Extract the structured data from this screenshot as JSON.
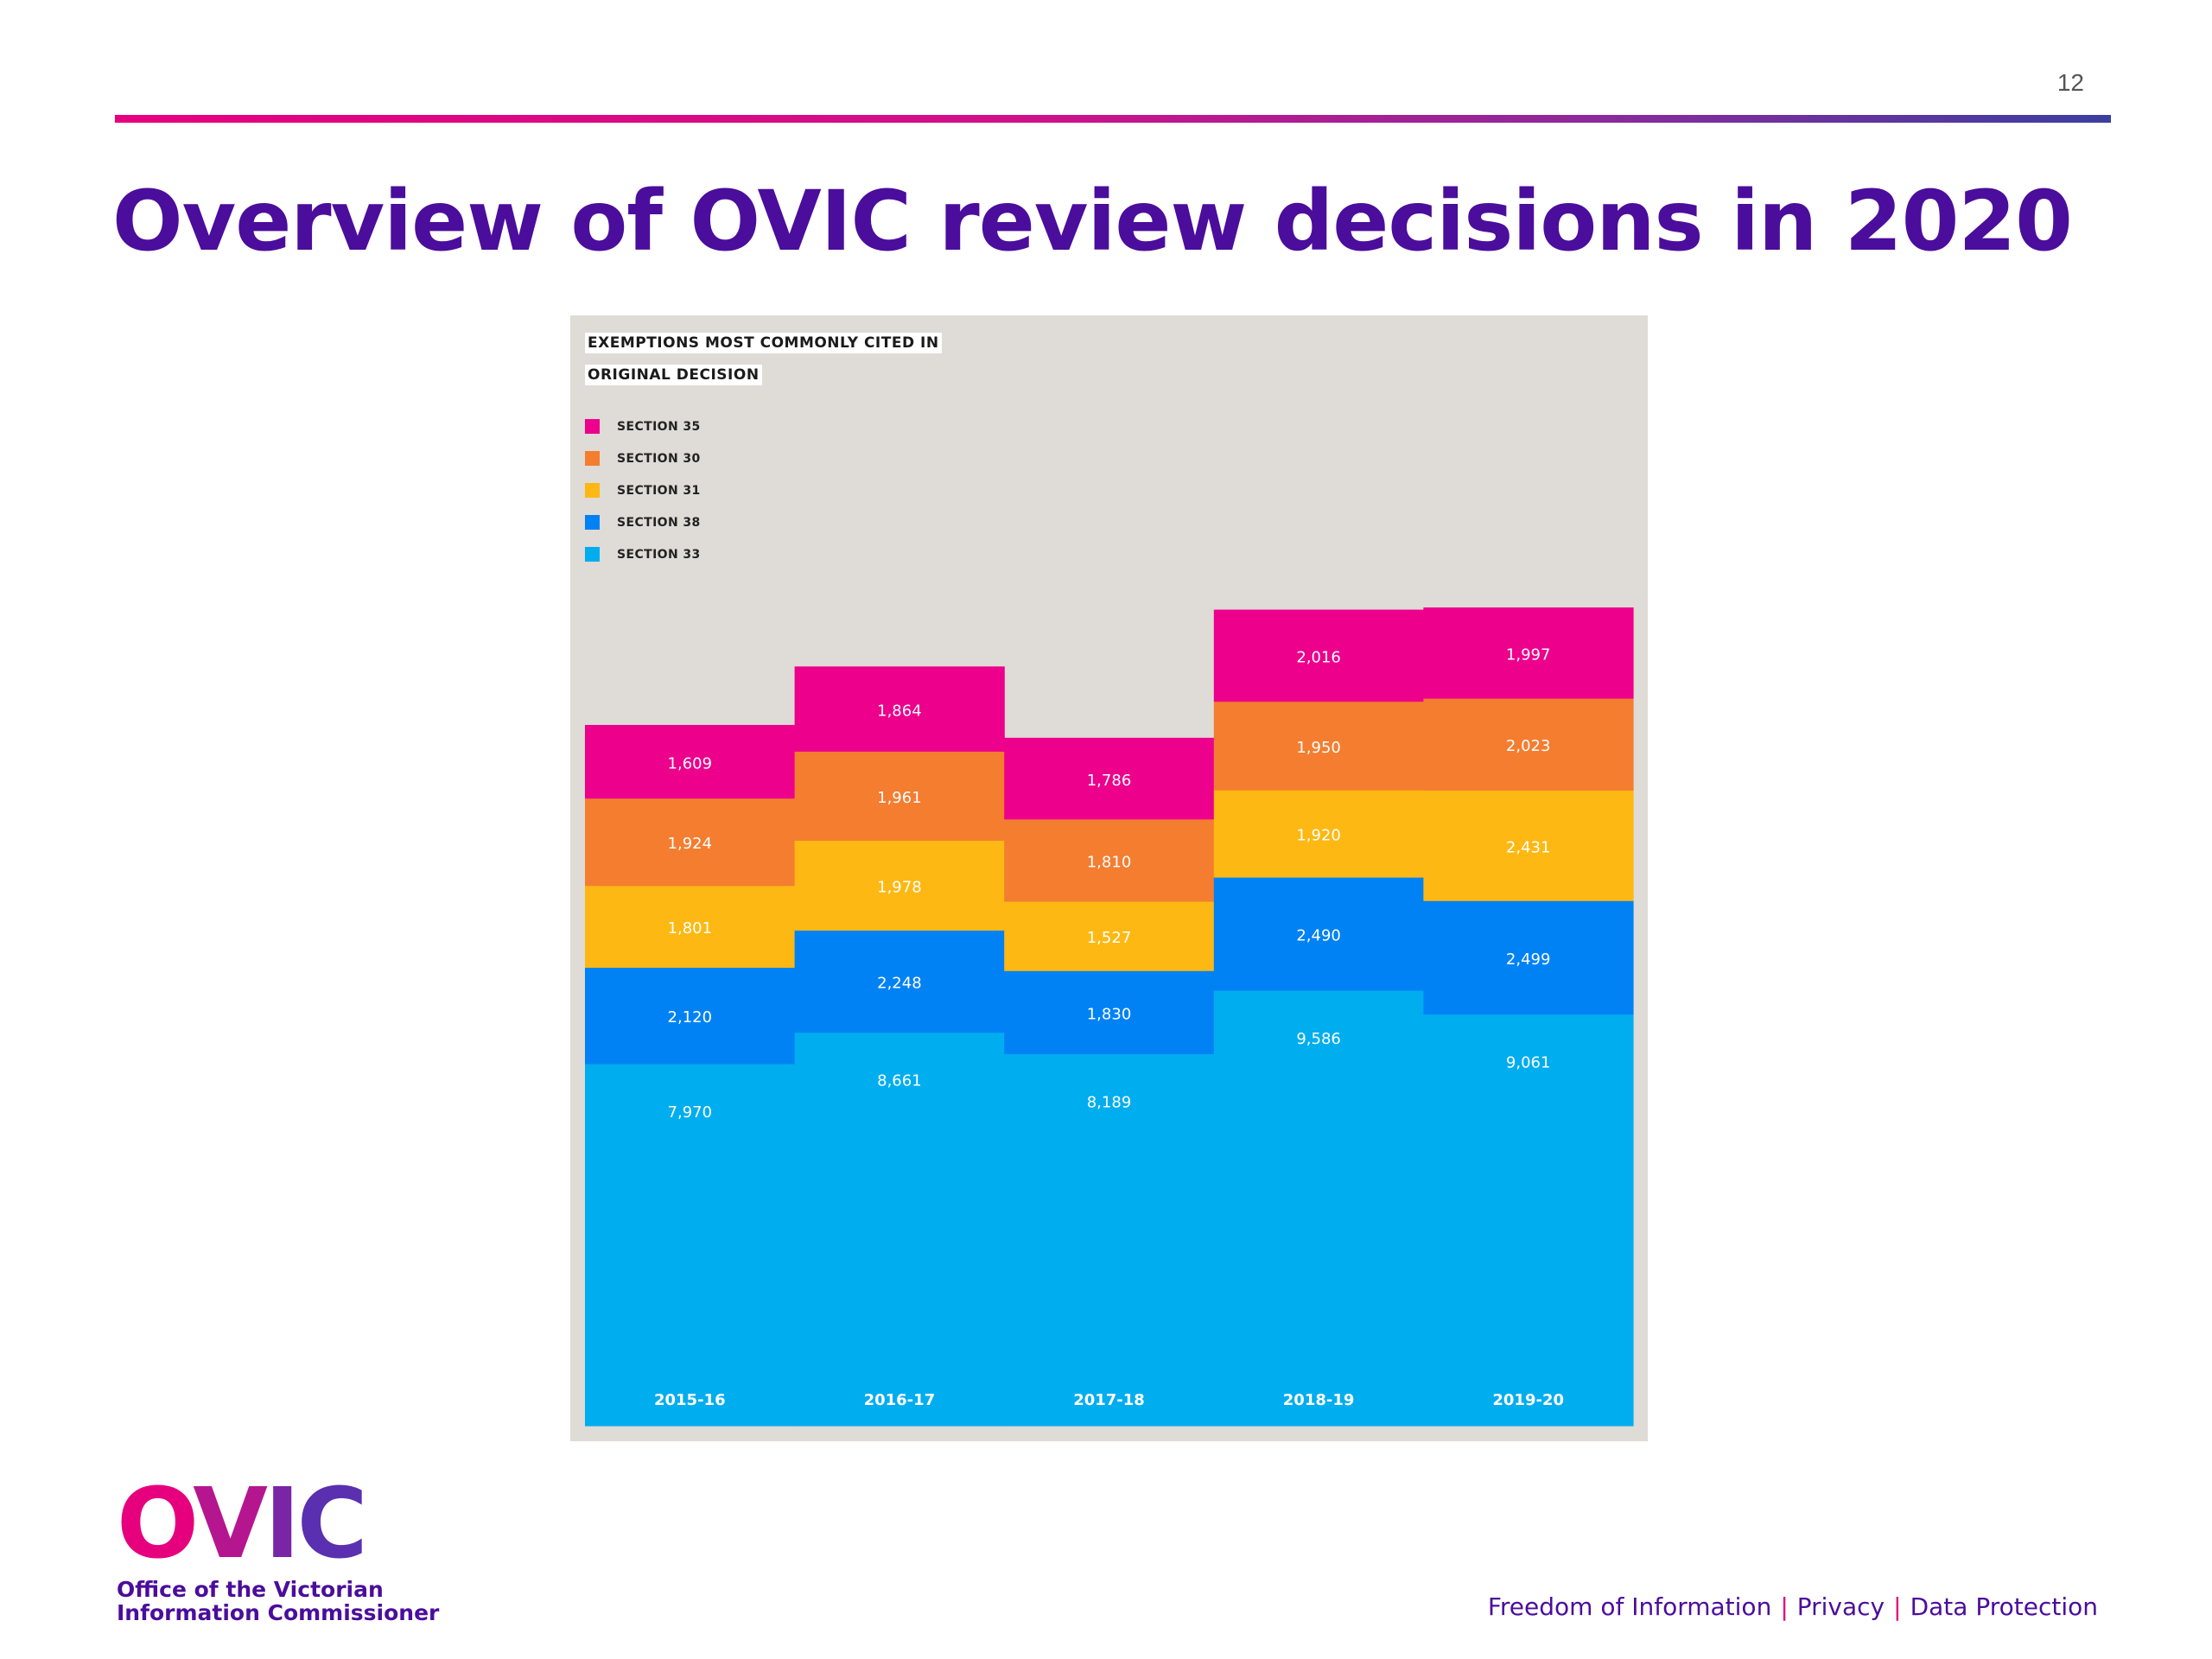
{
  "slide": {
    "page_number": "12",
    "title": "Overview of OVIC review decisions in 2020"
  },
  "chart": {
    "title_line1": "EXEMPTIONS MOST COMMONLY CITED IN",
    "title_line2": "ORIGINAL DECISION",
    "legend": [
      {
        "label": "SECTION 35",
        "color": "#ec008c"
      },
      {
        "label": "SECTION 30",
        "color": "#f47d30"
      },
      {
        "label": "SECTION 31",
        "color": "#fdb813"
      },
      {
        "label": "SECTION 38",
        "color": "#0082f5"
      },
      {
        "label": "SECTION 33",
        "color": "#00adef"
      }
    ]
  },
  "chart_data": {
    "type": "bar",
    "stacked": true,
    "title": "EXEMPTIONS MOST COMMONLY CITED IN ORIGINAL DECISION",
    "categories": [
      "2015-16",
      "2016-17",
      "2017-18",
      "2018-19",
      "2019-20"
    ],
    "series": [
      {
        "name": "SECTION 33",
        "color": "#00adef",
        "values": [
          7970,
          8661,
          8189,
          9586,
          9061
        ],
        "labels": [
          "7,970",
          "8,661",
          "8,189",
          "9,586",
          "9,061"
        ]
      },
      {
        "name": "SECTION 38",
        "color": "#0082f5",
        "values": [
          2120,
          2248,
          1830,
          2490,
          2499
        ],
        "labels": [
          "2,120",
          "2,248",
          "1,830",
          "2,490",
          "2,499"
        ]
      },
      {
        "name": "SECTION 31",
        "color": "#fdb813",
        "values": [
          1801,
          1978,
          1527,
          1920,
          2431
        ],
        "labels": [
          "1,801",
          "1,978",
          "1,527",
          "1,920",
          "2,431"
        ]
      },
      {
        "name": "SECTION 30",
        "color": "#f47d30",
        "values": [
          1924,
          1961,
          1810,
          1950,
          2023
        ],
        "labels": [
          "1,924",
          "1,961",
          "1,810",
          "1,950",
          "2,023"
        ]
      },
      {
        "name": "SECTION 35",
        "color": "#ec008c",
        "values": [
          1609,
          1864,
          1786,
          2016,
          1997
        ],
        "labels": [
          "1,609",
          "1,864",
          "1,786",
          "2,016",
          "1,997"
        ]
      }
    ],
    "legend_position": "top-left",
    "grid": false
  },
  "footer": {
    "logo_text": "OVIC",
    "logo_caption_line1": "Office of the Victorian",
    "logo_caption_line2": "Information Commissioner",
    "tagline": [
      "Freedom of Information",
      "Privacy",
      "Data Protection"
    ],
    "tagline_separator": "|"
  }
}
